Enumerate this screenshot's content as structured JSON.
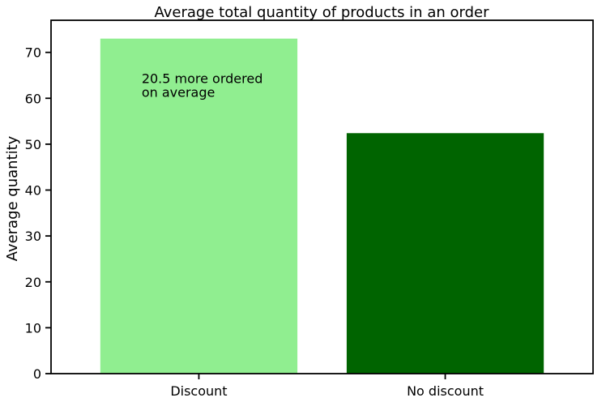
{
  "chart_data": {
    "type": "bar",
    "title": "Average total quantity of products in an order",
    "xlabel": "",
    "ylabel": "Average quantity",
    "categories": [
      "Discount",
      "No discount"
    ],
    "values": [
      73.0,
      52.4
    ],
    "colors": [
      "#90ee90",
      "#006400"
    ],
    "ylim": [
      0,
      77
    ],
    "yticks": [
      0,
      10,
      20,
      30,
      40,
      50,
      60,
      70
    ],
    "grid": false,
    "annotation": {
      "lines": [
        "20.5 more ordered",
        "on average"
      ],
      "x_category": "Discount",
      "y": 64
    }
  }
}
